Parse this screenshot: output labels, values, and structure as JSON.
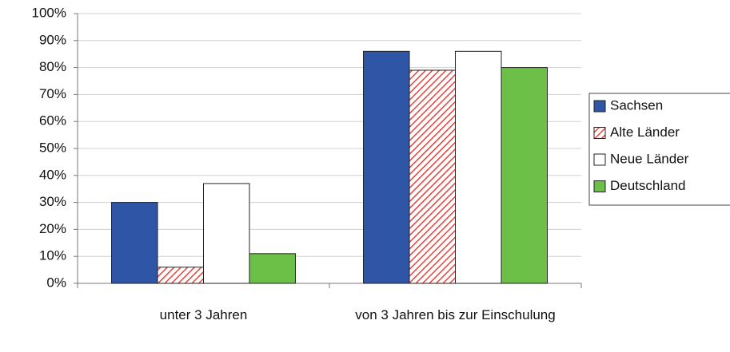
{
  "chart_data": {
    "type": "bar",
    "categories": [
      "unter 3 Jahren",
      "von 3 Jahren bis zur Einschulung"
    ],
    "series": [
      {
        "name": "Sachsen",
        "color": "#2f56a6",
        "values": [
          30,
          86
        ]
      },
      {
        "name": "Alte Länder",
        "color": "#e8413c",
        "hatch": true,
        "values": [
          6,
          79
        ]
      },
      {
        "name": "Neue Länder",
        "color": "#ffffff",
        "values": [
          37,
          86
        ]
      },
      {
        "name": "Deutschland",
        "color": "#6cbf47",
        "values": [
          11,
          80
        ]
      }
    ],
    "ylim": [
      0,
      100
    ],
    "yticks": [
      {
        "value": 0,
        "label": "0%"
      },
      {
        "value": 10,
        "label": "10%"
      },
      {
        "value": 20,
        "label": "20%"
      },
      {
        "value": 30,
        "label": "30%"
      },
      {
        "value": 40,
        "label": "40%"
      },
      {
        "value": 50,
        "label": "50%"
      },
      {
        "value": 60,
        "label": "60%"
      },
      {
        "value": 70,
        "label": "70%"
      },
      {
        "value": 80,
        "label": "80%"
      },
      {
        "value": 90,
        "label": "90%"
      },
      {
        "value": 100,
        "label": "100%"
      }
    ],
    "grid": true,
    "legend": "right"
  }
}
